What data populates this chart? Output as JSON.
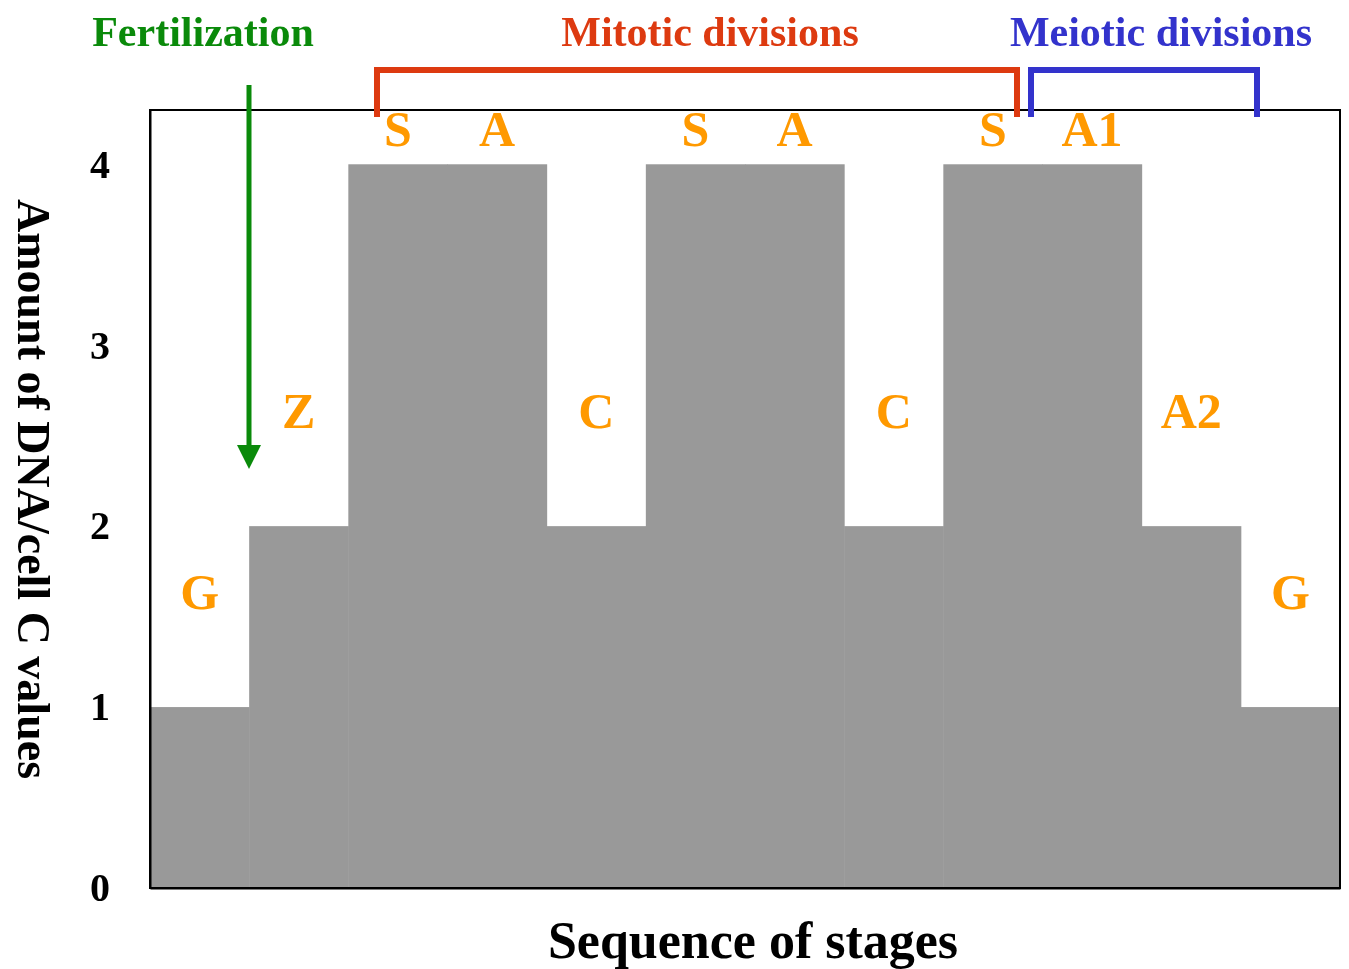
{
  "chart_data": {
    "type": "bar",
    "xlabel": "Sequence of stages",
    "ylabel": "Amount of DNA/cell C values",
    "categories": [
      "G",
      "Z",
      "S",
      "A",
      "C",
      "S",
      "A",
      "C",
      "S",
      "A1",
      "A2",
      "G"
    ],
    "values": [
      1,
      2,
      4,
      4,
      2,
      4,
      4,
      2,
      4,
      4,
      2,
      1
    ],
    "color": "#999999",
    "ylim": [
      0,
      4.3
    ],
    "yticks": [
      0,
      1,
      2,
      3,
      4
    ],
    "grid": false,
    "annotations": [
      "Fertilization",
      "Mitotic divisions",
      "Meiotic divisions"
    ]
  }
}
